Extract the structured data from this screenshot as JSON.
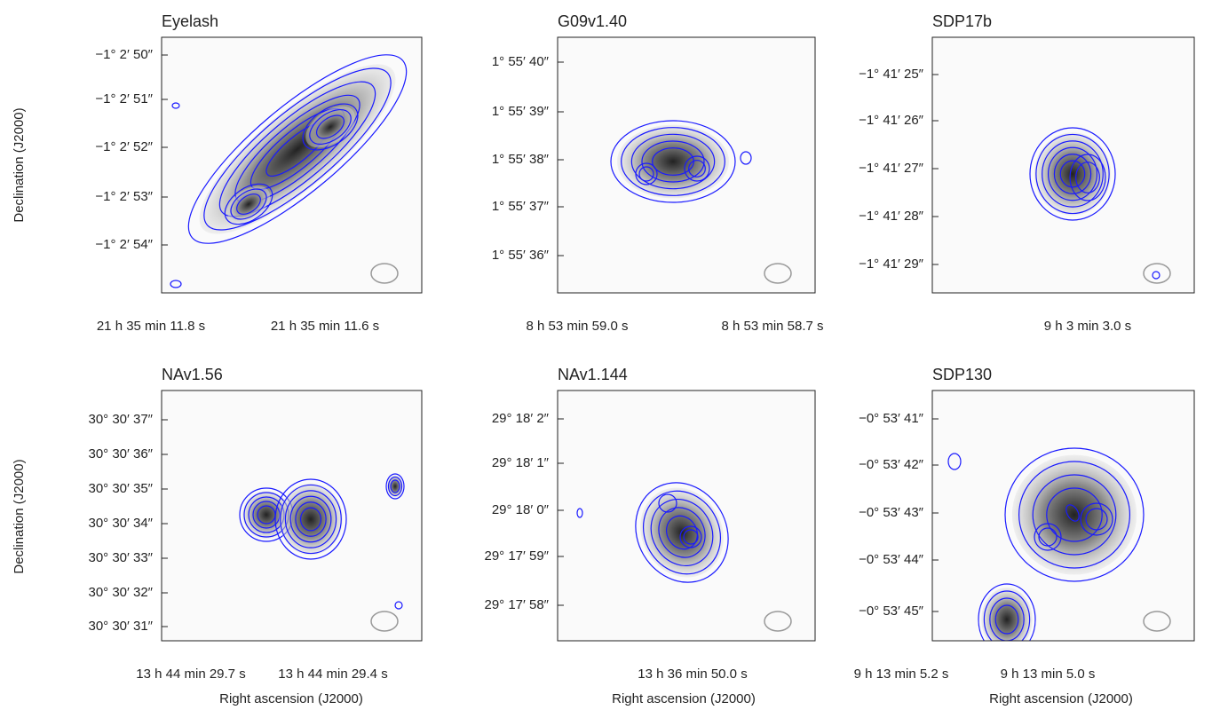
{
  "figure": {
    "y_label": "Declination (J2000)",
    "x_label": "Right ascension (J2000)",
    "panels": [
      {
        "title": "Eyelash",
        "yticks": [
          "−1° 2′ 50″",
          "−1° 2′ 51″",
          "−1° 2′ 52″",
          "−1° 2′ 53″",
          "−1° 2′ 54″"
        ],
        "xticks": [
          "21 h 35 min 11.8 s",
          "21 h 35 min 11.6 s"
        ]
      },
      {
        "title": "G09v1.40",
        "yticks": [
          "1° 55′ 40″",
          "1° 55′ 39″",
          "1° 55′ 38″",
          "1° 55′ 37″",
          "1° 55′ 36″"
        ],
        "xticks": [
          "8 h 53 min 59.0 s",
          "8 h 53 min 58.7 s"
        ]
      },
      {
        "title": "SDP17b",
        "yticks": [
          "−1° 41′ 25″",
          "−1° 41′ 26″",
          "−1° 41′ 27″",
          "−1° 41′ 28″",
          "−1° 41′ 29″"
        ],
        "xticks": [
          "9 h 3 min 3.0 s"
        ]
      },
      {
        "title": "NAv1.56",
        "yticks": [
          "30° 30′ 37″",
          "30° 30′ 36″",
          "30° 30′ 35″",
          "30° 30′ 34″",
          "30° 30′ 33″",
          "30° 30′ 32″",
          "30° 30′ 31″"
        ],
        "xticks": [
          "13 h 44 min 29.7 s",
          "13 h 44 min 29.4 s"
        ]
      },
      {
        "title": "NAv1.144",
        "yticks": [
          "29° 18′ 2″",
          "29° 18′ 1″",
          "29° 18′ 0″",
          "29° 17′ 59″",
          "29° 17′ 58″"
        ],
        "xticks": [
          "13 h 36 min 50.0 s"
        ]
      },
      {
        "title": "SDP130",
        "yticks": [
          "−0° 53′ 41″",
          "−0° 53′ 42″",
          "−0° 53′ 43″",
          "−0° 53′ 44″",
          "−0° 53′ 45″"
        ],
        "xticks": [
          "9 h 13 min 5.2 s",
          "9 h 13 min 5.0 s"
        ]
      }
    ]
  }
}
